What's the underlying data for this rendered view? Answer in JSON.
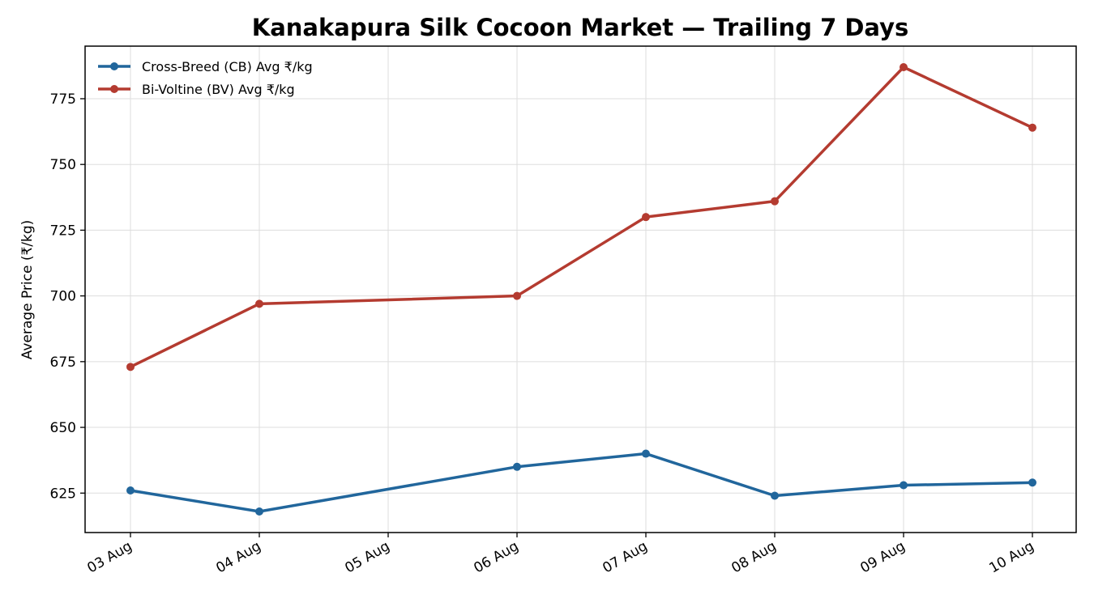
{
  "chart_data": {
    "type": "line",
    "title": "Kanakapura Silk Cocoon Market — Trailing 7 Days",
    "xlabel": "",
    "ylabel": "Average Price (₹/kg)",
    "categories": [
      "03 Aug",
      "04 Aug",
      "05 Aug",
      "06 Aug",
      "07 Aug",
      "08 Aug",
      "09 Aug",
      "10 Aug"
    ],
    "ylim": [
      610,
      795
    ],
    "yticks": [
      625,
      650,
      675,
      700,
      725,
      750,
      775
    ],
    "grid": true,
    "legend_position": "top-left",
    "series": [
      {
        "name": "Cross-Breed (CB) Avg ₹/kg",
        "color": "#21669c",
        "points": [
          {
            "x": "03 Aug",
            "y": 626
          },
          {
            "x": "04 Aug",
            "y": 618
          },
          {
            "x": "06 Aug",
            "y": 635
          },
          {
            "x": "07 Aug",
            "y": 640
          },
          {
            "x": "08 Aug",
            "y": 624
          },
          {
            "x": "09 Aug",
            "y": 628
          },
          {
            "x": "10 Aug",
            "y": 629
          }
        ]
      },
      {
        "name": "Bi-Voltine (BV) Avg ₹/kg",
        "color": "#b43b30",
        "points": [
          {
            "x": "03 Aug",
            "y": 673
          },
          {
            "x": "04 Aug",
            "y": 697
          },
          {
            "x": "06 Aug",
            "y": 700
          },
          {
            "x": "07 Aug",
            "y": 730
          },
          {
            "x": "08 Aug",
            "y": 736
          },
          {
            "x": "09 Aug",
            "y": 787
          },
          {
            "x": "10 Aug",
            "y": 764
          }
        ]
      }
    ]
  }
}
